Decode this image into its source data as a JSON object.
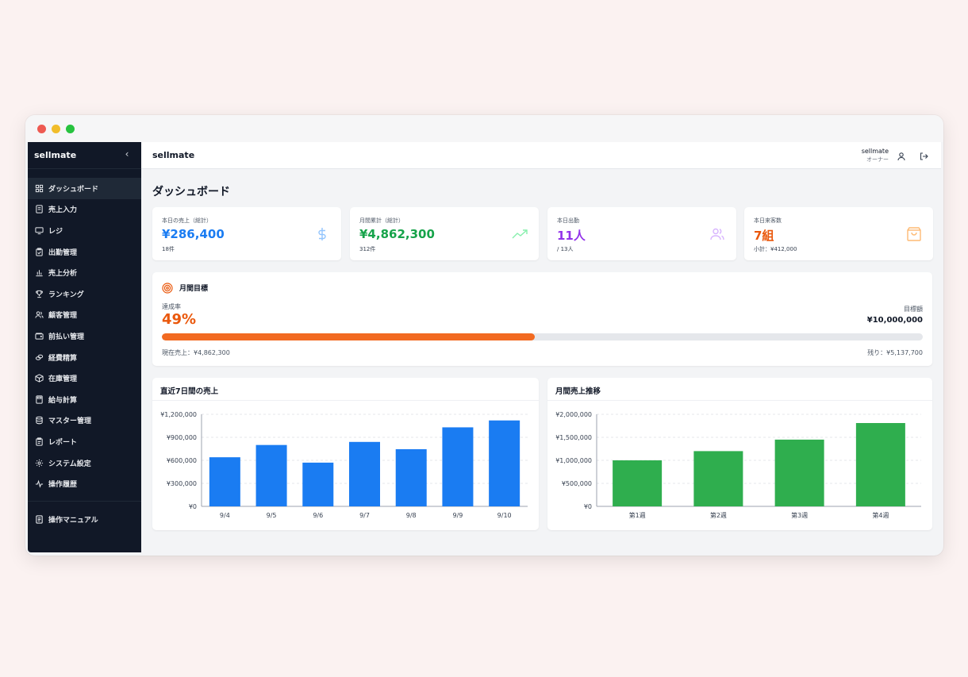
{
  "app": {
    "name": "sellmate"
  },
  "sidebar": {
    "brand": "sellmate",
    "collapse_icon": "chevron-left-icon",
    "items": [
      {
        "label": "ダッシュボード",
        "icon": "grid-icon",
        "active": true
      },
      {
        "label": "売上入力",
        "icon": "receipt-icon"
      },
      {
        "label": "レジ",
        "icon": "monitor-icon"
      },
      {
        "label": "出勤管理",
        "icon": "clipboard-icon"
      },
      {
        "label": "売上分析",
        "icon": "bar-chart-icon"
      },
      {
        "label": "ランキング",
        "icon": "trophy-icon"
      },
      {
        "label": "顧客管理",
        "icon": "users-icon"
      },
      {
        "label": "前払い管理",
        "icon": "wallet-icon"
      },
      {
        "label": "経費精算",
        "icon": "coins-icon"
      },
      {
        "label": "在庫管理",
        "icon": "box-icon"
      },
      {
        "label": "給与計算",
        "icon": "calculator-icon"
      },
      {
        "label": "マスター管理",
        "icon": "database-icon"
      },
      {
        "label": "レポート",
        "icon": "report-icon"
      },
      {
        "label": "システム設定",
        "icon": "gear-icon"
      },
      {
        "label": "操作履歴",
        "icon": "activity-icon"
      }
    ],
    "bottom_item": {
      "label": "操作マニュアル",
      "icon": "manual-icon"
    }
  },
  "topbar": {
    "title": "sellmate",
    "user_name": "sellmate",
    "user_role": "オーナー"
  },
  "page": {
    "title": "ダッシュボード"
  },
  "stats": [
    {
      "label": "本日の売上（総計）",
      "value": "¥286,400",
      "sub": "18件",
      "color": "#1a7cf2",
      "icon": "dollar-icon"
    },
    {
      "label": "月間累計（総計）",
      "value": "¥4,862,300",
      "sub": "312件",
      "color": "#16a34a",
      "icon": "trending-up-icon"
    },
    {
      "label": "本日出勤",
      "value": "11人",
      "sub": "/ 13人",
      "color": "#9333ea",
      "icon": "users-icon"
    },
    {
      "label": "本日来客数",
      "value": "7組",
      "sub": "小計：¥412,000",
      "color": "#ea580c",
      "icon": "shopping-bag-icon"
    }
  ],
  "goal": {
    "title": "月間目標",
    "icon": "target-icon",
    "rate_label": "達成率",
    "rate_value": "49%",
    "progress": 0.49,
    "target_label": "目標額",
    "target_value": "¥10,000,000",
    "current": "現在売上：¥4,862,300",
    "remaining": "残り：¥5,137,700"
  },
  "chart_data": [
    {
      "type": "bar",
      "title": "直近7日間の売上",
      "categories": [
        "9/4",
        "9/5",
        "9/6",
        "9/7",
        "9/8",
        "9/9",
        "9/10"
      ],
      "values": [
        640000,
        800000,
        570000,
        840000,
        745000,
        1030000,
        1120000
      ],
      "ylim": [
        0,
        1200000
      ],
      "yticks": [
        0,
        300000,
        600000,
        900000,
        1200000
      ],
      "ytick_labels": [
        "¥0",
        "¥300,000",
        "¥600,000",
        "¥900,000",
        "¥1,200,000"
      ],
      "color": "#1a7cf2",
      "grid": true
    },
    {
      "type": "bar",
      "title": "月間売上推移",
      "categories": [
        "第1週",
        "第2週",
        "第3週",
        "第4週"
      ],
      "values": [
        1000000,
        1200000,
        1450000,
        1810000
      ],
      "ylim": [
        0,
        2000000
      ],
      "yticks": [
        0,
        500000,
        1000000,
        1500000,
        2000000
      ],
      "ytick_labels": [
        "¥0",
        "¥500,000",
        "¥1,000,000",
        "¥1,500,000",
        "¥2,000,000"
      ],
      "color": "#2fae4e",
      "grid": true
    }
  ]
}
